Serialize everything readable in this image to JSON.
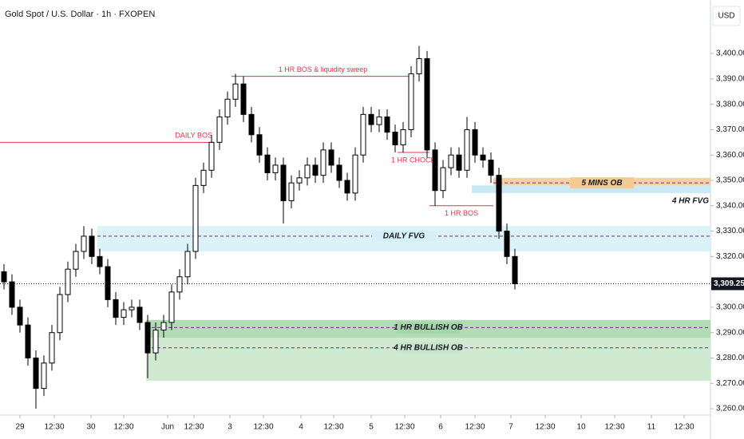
{
  "chart_data": {
    "type": "candlestick",
    "title": "Gold Spot / U.S. Dollar · 1h · FXOPEN",
    "currency": "USD",
    "x": [
      0,
      1,
      2,
      3,
      4,
      5,
      6,
      7,
      8,
      9,
      10,
      11,
      12,
      13,
      14,
      15,
      16,
      17,
      18,
      19,
      20,
      21,
      22,
      23,
      24,
      25,
      26,
      27,
      28,
      29,
      30,
      31,
      32,
      33,
      34,
      35,
      36,
      37,
      38,
      39,
      40,
      41,
      42,
      43,
      44,
      45,
      46,
      47,
      48,
      49,
      50,
      51,
      52,
      53,
      54,
      55,
      56,
      57,
      58,
      59,
      60,
      61,
      62,
      63,
      64
    ],
    "open": [
      3314,
      3310,
      3300,
      3293,
      3280,
      3268,
      3278,
      3290,
      3305,
      3315,
      3322,
      3328,
      3320,
      3316,
      3303,
      3296,
      3299,
      3300,
      3294,
      3282,
      3291,
      3294,
      3306,
      3312,
      3322,
      3348,
      3354,
      3365,
      3375,
      3382,
      3388,
      3376,
      3368,
      3360,
      3353,
      3356,
      3342,
      3349,
      3351,
      3356,
      3352,
      3362,
      3356,
      3350,
      3345,
      3360,
      3376,
      3372,
      3375,
      3369,
      3364,
      3370,
      3392,
      3398,
      3362,
      3346,
      3355,
      3360,
      3354,
      3370,
      3360,
      3358,
      3352,
      3330,
      3320
    ],
    "high": [
      3317,
      3313,
      3303,
      3296,
      3283,
      3281,
      3293,
      3308,
      3318,
      3325,
      3332,
      3331,
      3323,
      3319,
      3306,
      3302,
      3303,
      3303,
      3297,
      3294,
      3297,
      3309,
      3315,
      3325,
      3351,
      3357,
      3368,
      3378,
      3385,
      3392,
      3391,
      3379,
      3371,
      3363,
      3359,
      3359,
      3352,
      3354,
      3359,
      3359,
      3365,
      3365,
      3359,
      3353,
      3363,
      3379,
      3379,
      3378,
      3378,
      3372,
      3373,
      3395,
      3403,
      3401,
      3365,
      3358,
      3363,
      3363,
      3375,
      3373,
      3363,
      3361,
      3355,
      3333,
      3323
    ],
    "low": [
      3307,
      3297,
      3290,
      3277,
      3260,
      3265,
      3275,
      3287,
      3302,
      3312,
      3319,
      3317,
      3313,
      3300,
      3293,
      3293,
      3296,
      3291,
      3272,
      3279,
      3288,
      3291,
      3303,
      3309,
      3319,
      3345,
      3351,
      3362,
      3372,
      3379,
      3373,
      3365,
      3357,
      3350,
      3350,
      3333,
      3339,
      3346,
      3348,
      3349,
      3349,
      3353,
      3347,
      3342,
      3342,
      3357,
      3369,
      3369,
      3366,
      3361,
      3361,
      3367,
      3389,
      3359,
      3340,
      3343,
      3352,
      3351,
      3351,
      3357,
      3355,
      3349,
      3327,
      3317,
      3307
    ],
    "close": [
      3310,
      3300,
      3293,
      3280,
      3268,
      3278,
      3290,
      3305,
      3315,
      3322,
      3328,
      3320,
      3316,
      3303,
      3296,
      3299,
      3300,
      3294,
      3282,
      3291,
      3294,
      3306,
      3312,
      3322,
      3348,
      3354,
      3365,
      3375,
      3382,
      3388,
      3376,
      3368,
      3360,
      3353,
      3356,
      3342,
      3349,
      3351,
      3356,
      3352,
      3362,
      3356,
      3350,
      3345,
      3360,
      3376,
      3372,
      3375,
      3369,
      3364,
      3370,
      3392,
      3398,
      3362,
      3346,
      3355,
      3360,
      3354,
      3370,
      3360,
      3358,
      3352,
      3330,
      3320,
      3309.25
    ],
    "up_color": "#ffffff",
    "down_color": "#000000",
    "xlim": [
      -0.5,
      88.5
    ],
    "xticks": [
      {
        "value": 2,
        "label": "29"
      },
      {
        "value": 6.3,
        "label": "12:30"
      },
      {
        "value": 10.9,
        "label": "30"
      },
      {
        "value": 15,
        "label": "12:30"
      },
      {
        "value": 20.5,
        "label": "Jun"
      },
      {
        "value": 23.8,
        "label": "12:30"
      },
      {
        "value": 28.3,
        "label": "3"
      },
      {
        "value": 32.5,
        "label": "12:30"
      },
      {
        "value": 37.2,
        "label": "4"
      },
      {
        "value": 41.3,
        "label": "12:30"
      },
      {
        "value": 46,
        "label": "5"
      },
      {
        "value": 50.2,
        "label": "12:30"
      },
      {
        "value": 54.7,
        "label": "6"
      },
      {
        "value": 59,
        "label": "12:30"
      },
      {
        "value": 63.5,
        "label": "7"
      },
      {
        "value": 67.8,
        "label": "12:30"
      },
      {
        "value": 72.3,
        "label": "10"
      },
      {
        "value": 76.5,
        "label": "12:30"
      },
      {
        "value": 81.1,
        "label": "11"
      },
      {
        "value": 85.2,
        "label": "12:30"
      }
    ],
    "ylim": [
      3257.5,
      3421.1
    ],
    "yticks": [
      {
        "value": 3260,
        "label": "3,260.00"
      },
      {
        "value": 3270,
        "label": "3,270.00"
      },
      {
        "value": 3280,
        "label": "3,280.00"
      },
      {
        "value": 3290,
        "label": "3,290.00"
      },
      {
        "value": 3300,
        "label": "3,300.00"
      },
      {
        "value": 3310,
        "label": "3,310.00"
      },
      {
        "value": 3320,
        "label": "3,320.00"
      },
      {
        "value": 3330,
        "label": "3,330.00"
      },
      {
        "value": 3340,
        "label": "3,340.00"
      },
      {
        "value": 3350,
        "label": "3,350.00"
      },
      {
        "value": 3360,
        "label": "3,360.00"
      },
      {
        "value": 3370,
        "label": "3,370.00"
      },
      {
        "value": 3380,
        "label": "3,380.00"
      },
      {
        "value": 3390,
        "label": "3,390.00"
      },
      {
        "value": 3400,
        "label": "3,400.00"
      }
    ],
    "last_price": {
      "value": 3309.25,
      "label": "3,309.25"
    },
    "zones": [
      {
        "label": "4 HR BULLISH OB",
        "x1": 17.8,
        "x2": 88.5,
        "y1": 3271,
        "y2": 3288,
        "line": 3284,
        "color": "#c8e6c9"
      },
      {
        "label": "1 HR BULLISH OB",
        "x1": 17.8,
        "x2": 88.5,
        "y1": 3288,
        "y2": 3295,
        "line": 3292,
        "color": "#a5d6a7"
      },
      {
        "label": "DAILY FVG",
        "x1": 11.7,
        "x2": 88.5,
        "y1": 3322,
        "y2": 3332,
        "line": 3328,
        "color": "#d6f0f8"
      },
      {
        "label": "4 HR FVG",
        "x1": 58.6,
        "x2": 88.5,
        "y1": 3345,
        "y2": 3348,
        "line": null,
        "color": "#bfe6f3"
      },
      {
        "label": "5 MINS OB",
        "x1": 61.3,
        "x2": 88.5,
        "y1": 3348,
        "y2": 3351,
        "line": 3349,
        "color": "#f5c98f"
      }
    ],
    "levels": [
      {
        "label": "DAILY BOS",
        "x1": -0.5,
        "x2": 26.3,
        "y": 3365
      },
      {
        "label": "1 HR BOS & liquidity sweep",
        "x1": 28.5,
        "x2": 51.4,
        "y": 3391
      },
      {
        "label": "1 HR CHOCH",
        "x1": 49.3,
        "x2": 53.3,
        "y": 3361
      },
      {
        "label": "1 HR BOS",
        "x1": 53.3,
        "x2": 61.3,
        "y": 3340
      }
    ]
  }
}
